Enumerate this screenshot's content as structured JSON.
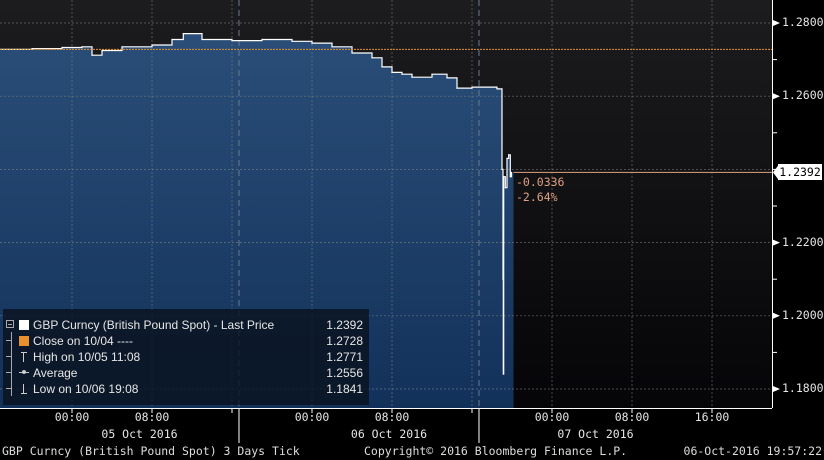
{
  "chart_data": {
    "type": "area",
    "title": "",
    "security": "GBP Curncy (British Pound Spot)",
    "period": "3 Days",
    "frequency": "Tick",
    "ylim": [
      1.175,
      1.2865
    ],
    "y_ticks": [
      "1.2800",
      "1.2600",
      "1.2400",
      "1.2200",
      "1.2000",
      "1.1800"
    ],
    "y_tick_values": [
      1.28,
      1.26,
      1.24,
      1.22,
      1.2,
      1.18
    ],
    "y_tick_labels_shown": [
      "1.2800",
      "1.2600",
      "1.2200",
      "1.2000",
      "1.1800"
    ],
    "x_ticks": [
      {
        "time": "2016-10-05 00:00",
        "label": "00:00"
      },
      {
        "time": "2016-10-05 08:00",
        "label": "08:00"
      },
      {
        "time": "2016-10-06 00:00",
        "label": "00:00"
      },
      {
        "time": "2016-10-06 08:00",
        "label": "08:00"
      },
      {
        "time": "2016-10-07 00:00",
        "label": "00:00"
      },
      {
        "time": "2016-10-07 08:00",
        "label": "08:00"
      },
      {
        "time": "2016-10-07 16:00",
        "label": "16:00"
      }
    ],
    "x_grid_times": [
      "2016-10-05 00:00",
      "2016-10-05 08:00",
      "2016-10-05 16:00",
      "2016-10-06 00:00",
      "2016-10-06 08:00",
      "2016-10-06 16:00",
      "2016-10-07 00:00",
      "2016-10-07 08:00",
      "2016-10-07 16:00"
    ],
    "day_labels": [
      {
        "time": "2016-10-05 00:00",
        "label": "05 Oct 2016"
      },
      {
        "time": "2016-10-06 00:00",
        "label": "06 Oct 2016"
      },
      {
        "time": "2016-10-07 00:00",
        "label": "07 Oct 2016"
      }
    ],
    "day_separators": [
      "2016-10-05 16:42",
      "2016-10-06 16:42"
    ],
    "x_start": "2016-10-04 16:48",
    "x_end": "2016-10-08 00:00",
    "grid": true,
    "legend_position": "bottom-left",
    "series": [
      {
        "name": "GBP Curncy (British Pound Spot) - Last Price",
        "color": "#ffffff",
        "fill": "#1f3f66",
        "points": [
          [
            "2016-10-04 16:48",
            1.2728
          ],
          [
            "2016-10-04 20:00",
            1.273
          ],
          [
            "2016-10-04 23:00",
            1.2733
          ],
          [
            "2016-10-05 01:00",
            1.2735
          ],
          [
            "2016-10-05 02:00",
            1.2712
          ],
          [
            "2016-10-05 03:00",
            1.2725
          ],
          [
            "2016-10-05 05:00",
            1.2735
          ],
          [
            "2016-10-05 08:00",
            1.274
          ],
          [
            "2016-10-05 10:00",
            1.2755
          ],
          [
            "2016-10-05 11:08",
            1.2771
          ],
          [
            "2016-10-05 13:00",
            1.2755
          ],
          [
            "2016-10-05 16:00",
            1.2752
          ],
          [
            "2016-10-05 19:00",
            1.2755
          ],
          [
            "2016-10-05 22:00",
            1.275
          ],
          [
            "2016-10-06 00:00",
            1.2745
          ],
          [
            "2016-10-06 02:00",
            1.2735
          ],
          [
            "2016-10-06 04:00",
            1.2718
          ],
          [
            "2016-10-06 06:00",
            1.2705
          ],
          [
            "2016-10-06 07:00",
            1.268
          ],
          [
            "2016-10-06 08:00",
            1.2665
          ],
          [
            "2016-10-06 09:00",
            1.266
          ],
          [
            "2016-10-06 10:00",
            1.2652
          ],
          [
            "2016-10-06 12:00",
            1.266
          ],
          [
            "2016-10-06 13:30",
            1.265
          ],
          [
            "2016-10-06 14:30",
            1.2622
          ],
          [
            "2016-10-06 16:00",
            1.2625
          ],
          [
            "2016-10-06 18:30",
            1.262
          ],
          [
            "2016-10-06 19:00",
            1.24
          ],
          [
            "2016-10-06 19:06",
            1.21
          ],
          [
            "2016-10-06 19:08",
            1.1841
          ],
          [
            "2016-10-06 19:10",
            1.238
          ],
          [
            "2016-10-06 19:20",
            1.235
          ],
          [
            "2016-10-06 19:30",
            1.243
          ],
          [
            "2016-10-06 19:40",
            1.244
          ],
          [
            "2016-10-06 19:50",
            1.238
          ],
          [
            "2016-10-06 19:57",
            1.2392
          ]
        ]
      }
    ],
    "close_line": {
      "value": 1.2728,
      "color": "#e8902a"
    },
    "last_price": {
      "value": "1.2392",
      "numeric": 1.2392,
      "change": "-0.0336",
      "change_pct": "-2.64%",
      "color": "#e0a080"
    }
  },
  "legend": {
    "items": [
      {
        "label": "GBP Curncy (British Pound Spot) - Last Price",
        "value": "1.2392",
        "swatch": "#ffffff",
        "icon": "white-square"
      },
      {
        "label": "Close on 10/04 ----",
        "value": "1.2728",
        "swatch": "#e8902a",
        "icon": "orange-square"
      },
      {
        "label": "High on 10/05 11:08",
        "value": "1.2771",
        "icon": "high-marker-icon"
      },
      {
        "label": "Average",
        "value": "1.2556",
        "icon": "average-marker-icon"
      },
      {
        "label": "Low on 10/06 19:08",
        "value": "1.1841",
        "icon": "low-marker-icon"
      }
    ]
  },
  "footer": {
    "left": "GBP Curncy (British Pound Spot) 3 Days  Tick",
    "center": "Copyright© 2016 Bloomberg Finance L.P.",
    "right": "06-Oct-2016 19:57:22"
  }
}
